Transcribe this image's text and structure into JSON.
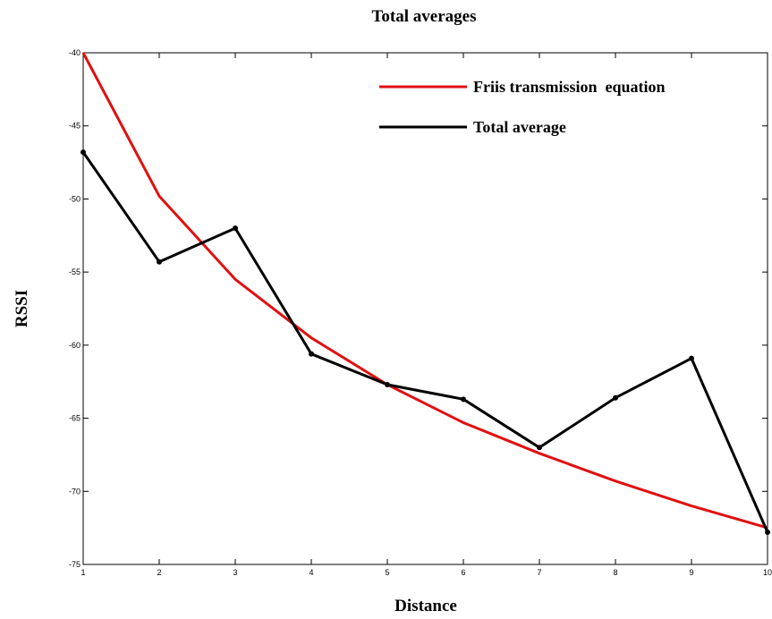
{
  "chart_data": {
    "type": "line",
    "title": "Total averages",
    "xlabel": "Distance",
    "ylabel": "RSSI",
    "x": [
      1,
      2,
      3,
      4,
      5,
      6,
      7,
      8,
      9,
      10
    ],
    "xlim": [
      1,
      10
    ],
    "ylim": [
      -75,
      -40
    ],
    "xticks": [
      "1",
      "2",
      "3",
      "4",
      "5",
      "6",
      "7",
      "8",
      "9",
      "10"
    ],
    "yticks": [
      "-40",
      "-45",
      "-50",
      "-55",
      "-60",
      "-65",
      "-70",
      "-75"
    ],
    "yticks_values": [
      -40,
      -45,
      -50,
      -55,
      -60,
      -65,
      -70,
      -75
    ],
    "grid": false,
    "legend_position": "top-right",
    "series": [
      {
        "name": "Friis transmission  equation",
        "color": "#e01010",
        "markers": false,
        "values": [
          -40.0,
          -49.8,
          -55.5,
          -59.5,
          -62.7,
          -65.3,
          -67.4,
          -69.3,
          -71.0,
          -72.5
        ]
      },
      {
        "name": "Total average",
        "color": "#000000",
        "markers": true,
        "values": [
          -46.8,
          -54.3,
          -52.0,
          -60.6,
          -62.7,
          -63.7,
          -67.0,
          -63.6,
          -60.9,
          -72.8
        ]
      }
    ]
  }
}
